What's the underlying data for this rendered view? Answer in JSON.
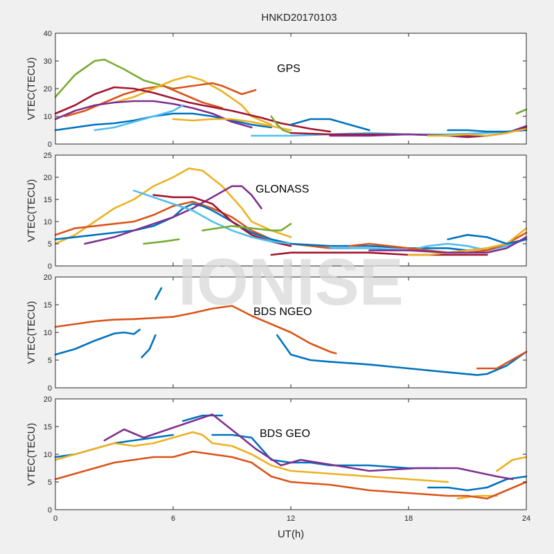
{
  "title": "HNKD20170103",
  "watermark": "IONISE",
  "xlabel": "UT(h)",
  "chart_data": [
    {
      "type": "line",
      "annotation": "GPS",
      "ylabel": "VTEC(TECU)",
      "xlim": [
        0,
        24
      ],
      "ylim": [
        0,
        40
      ],
      "xticks": [
        0,
        6,
        12,
        18,
        24
      ],
      "yticks": [
        0,
        10,
        20,
        30,
        40
      ],
      "grid": false,
      "series": [
        {
          "color": "#77ac30",
          "x": [
            0,
            1,
            2,
            2.5,
            3.5,
            4.5,
            5.5,
            6
          ],
          "y": [
            17,
            25,
            30,
            30.5,
            27,
            23,
            21,
            20
          ]
        },
        {
          "color": "#0072bd",
          "x": [
            0,
            1,
            2,
            3,
            4,
            5,
            6,
            7,
            8,
            9,
            10,
            11
          ],
          "y": [
            5,
            6,
            7,
            7.5,
            8.5,
            10,
            11,
            11,
            10,
            8.5,
            7,
            6
          ]
        },
        {
          "color": "#d95319",
          "x": [
            0.5,
            1.5,
            2.5,
            3.5,
            4.5,
            5.5,
            6.5,
            7.5,
            8.5
          ],
          "y": [
            10,
            12,
            15,
            18,
            20,
            21,
            18,
            15,
            13
          ]
        },
        {
          "color": "#edb120",
          "x": [
            3,
            4,
            5,
            6,
            6.8,
            7.5,
            8.5,
            9.5,
            10,
            11
          ],
          "y": [
            15,
            17,
            20,
            23,
            24.5,
            23,
            19,
            14,
            10,
            7
          ]
        },
        {
          "color": "#a2142f",
          "x": [
            0,
            1,
            2,
            3,
            4,
            5,
            6,
            6.8,
            7.5,
            9,
            10.5,
            11.5,
            13,
            14
          ],
          "y": [
            11,
            14,
            18,
            20.5,
            20,
            18.5,
            16.5,
            15,
            14,
            12,
            9.5,
            7.5,
            5.5,
            4.5
          ]
        },
        {
          "color": "#7e2f8e",
          "x": [
            0,
            1,
            2,
            3,
            4,
            5,
            6,
            7,
            8,
            9,
            10
          ],
          "y": [
            9,
            12,
            14,
            15,
            15.5,
            15.5,
            14.5,
            13,
            11,
            8,
            6
          ]
        },
        {
          "color": "#4dbeee",
          "x": [
            2,
            3,
            4,
            5,
            6,
            6.5
          ],
          "y": [
            5,
            6,
            8,
            10,
            12,
            14
          ]
        },
        {
          "color": "#d95319",
          "x": [
            6,
            7,
            8,
            8.5,
            9.5,
            10.2
          ],
          "y": [
            20,
            21,
            22,
            21,
            18,
            19.5
          ]
        },
        {
          "color": "#edb120",
          "x": [
            6,
            7,
            8,
            9,
            10,
            11,
            12
          ],
          "y": [
            9,
            8.5,
            9,
            9,
            8,
            6.5,
            5
          ]
        },
        {
          "color": "#77ac30",
          "x": [
            11,
            11.3,
            11.6,
            12
          ],
          "y": [
            10,
            7,
            5,
            4
          ]
        },
        {
          "color": "#0072bd",
          "x": [
            12,
            13,
            14,
            15,
            16
          ],
          "y": [
            7,
            9,
            9,
            7,
            5
          ]
        },
        {
          "color": "#4dbeee",
          "x": [
            10,
            12,
            14,
            16,
            18,
            20,
            22,
            24
          ],
          "y": [
            3,
            3,
            3.5,
            4,
            3.5,
            3.5,
            4,
            5
          ]
        },
        {
          "color": "#a2142f",
          "x": [
            12,
            14,
            16,
            18,
            20,
            21,
            22,
            23,
            24
          ],
          "y": [
            4,
            3.5,
            3.5,
            3.5,
            3,
            2.5,
            3,
            4,
            6
          ]
        },
        {
          "color": "#7e2f8e",
          "x": [
            14,
            16,
            18,
            20,
            22,
            23,
            24
          ],
          "y": [
            3,
            3,
            3.5,
            3,
            3,
            4,
            6.5
          ]
        },
        {
          "color": "#0072bd",
          "x": [
            20,
            21,
            22,
            23,
            24
          ],
          "y": [
            5,
            5,
            4.5,
            4.5,
            5
          ]
        },
        {
          "color": "#edb120",
          "x": [
            19,
            20,
            21,
            22,
            23,
            24
          ],
          "y": [
            3,
            3,
            3.5,
            3,
            4,
            5.5
          ]
        },
        {
          "color": "#77ac30",
          "x": [
            23.5,
            24
          ],
          "y": [
            11,
            12.5
          ]
        }
      ]
    },
    {
      "type": "line",
      "annotation": "GLONASS",
      "ylabel": "VTEC(TECU)",
      "xlim": [
        0,
        24
      ],
      "ylim": [
        0,
        25
      ],
      "xticks": [
        0,
        6,
        12,
        18,
        24
      ],
      "yticks": [
        0,
        5,
        10,
        15,
        20,
        25
      ],
      "grid": false,
      "series": [
        {
          "color": "#edb120",
          "x": [
            0,
            1,
            2,
            3,
            4,
            5,
            6,
            6.8,
            7.5,
            8.5,
            9.5,
            10,
            11,
            12
          ],
          "y": [
            5,
            7,
            10,
            13,
            15,
            18,
            20,
            22,
            21.5,
            18,
            13,
            10,
            8,
            6.5
          ]
        },
        {
          "color": "#d95319",
          "x": [
            0,
            1,
            2,
            3,
            4,
            5,
            6,
            7,
            8,
            9,
            10,
            11,
            12,
            13,
            14,
            15
          ],
          "y": [
            7,
            8.5,
            9,
            9.5,
            10,
            11.5,
            13.5,
            14.5,
            13,
            11,
            8,
            6,
            5,
            4.5,
            4,
            4
          ]
        },
        {
          "color": "#0072bd",
          "x": [
            0,
            1,
            2,
            3,
            4,
            5,
            6,
            6.5,
            7,
            7.5,
            8,
            9,
            10,
            11,
            12
          ],
          "y": [
            6,
            6.5,
            7,
            7.5,
            8,
            9,
            11,
            13,
            14,
            13.5,
            12.5,
            10,
            7.5,
            6,
            5
          ]
        },
        {
          "color": "#7e2f8e",
          "x": [
            1.5,
            3,
            4,
            5,
            6,
            7,
            8,
            9,
            9.5,
            10,
            10.5
          ],
          "y": [
            5,
            6.5,
            8,
            9.5,
            11,
            13,
            15.5,
            18,
            18,
            16,
            13
          ]
        },
        {
          "color": "#a2142f",
          "x": [
            5,
            6,
            7,
            8,
            8.5,
            9,
            10,
            11,
            12
          ],
          "y": [
            16,
            15.5,
            15.5,
            14,
            12,
            10,
            7,
            5.5,
            4.5
          ]
        },
        {
          "color": "#4dbeee",
          "x": [
            4,
            5,
            6,
            7,
            8,
            9,
            10,
            11,
            12
          ],
          "y": [
            17,
            15.5,
            14,
            12.5,
            10,
            8,
            6.5,
            5.5,
            5
          ]
        },
        {
          "color": "#77ac30",
          "x": [
            4.5,
            5.5,
            6.3
          ],
          "y": [
            5,
            5.5,
            6
          ]
        },
        {
          "color": "#77ac30",
          "x": [
            7.5,
            9,
            10,
            11,
            11.5,
            12
          ],
          "y": [
            8,
            9,
            8.5,
            8,
            8,
            9.5
          ]
        },
        {
          "color": "#0072bd",
          "x": [
            12,
            14,
            16,
            18,
            20,
            21,
            22,
            23,
            24
          ],
          "y": [
            5,
            4.5,
            4.5,
            4,
            4,
            3.5,
            4,
            5,
            6
          ]
        },
        {
          "color": "#4dbeee",
          "x": [
            14,
            16,
            18,
            19,
            20,
            21,
            22,
            23,
            24
          ],
          "y": [
            4,
            4,
            3.5,
            4.5,
            5,
            4.5,
            3.5,
            4.5,
            6
          ]
        },
        {
          "color": "#d95319",
          "x": [
            15,
            16,
            17,
            18,
            19,
            20,
            21,
            22,
            23,
            24
          ],
          "y": [
            4.5,
            5,
            4.5,
            4,
            3.5,
            3,
            3,
            3.5,
            5,
            7.5
          ]
        },
        {
          "color": "#a2142f",
          "x": [
            11,
            12,
            14,
            16,
            18,
            20,
            22
          ],
          "y": [
            2.5,
            3,
            3,
            3,
            2.5,
            2.5,
            2.5
          ]
        },
        {
          "color": "#edb120",
          "x": [
            18,
            19,
            20,
            21,
            22,
            23,
            24
          ],
          "y": [
            2.5,
            2.5,
            3,
            3.5,
            4,
            5,
            8.5
          ]
        },
        {
          "color": "#0072bd",
          "x": [
            20,
            21,
            22,
            23,
            24
          ],
          "y": [
            6,
            7,
            6.5,
            5,
            6
          ]
        },
        {
          "color": "#7e2f8e",
          "x": [
            16,
            18,
            20,
            22,
            23,
            24
          ],
          "y": [
            3.5,
            3.5,
            3,
            3,
            4,
            6.5
          ]
        }
      ]
    },
    {
      "type": "line",
      "annotation": "BDS NGEO",
      "ylabel": "VTEC(TECU)",
      "xlim": [
        0,
        24
      ],
      "ylim": [
        0,
        20
      ],
      "xticks": [
        0,
        6,
        12,
        18,
        24
      ],
      "yticks": [
        0,
        5,
        10,
        15,
        20
      ],
      "grid": false,
      "series": [
        {
          "color": "#d95319",
          "x": [
            0,
            1,
            2,
            3,
            4,
            5,
            6,
            7,
            8,
            9,
            10,
            11,
            12,
            13,
            14,
            14.3
          ],
          "y": [
            11,
            11.5,
            12,
            12.3,
            12.4,
            12.6,
            12.8,
            13.5,
            14.3,
            14.8,
            13,
            11.5,
            10,
            8,
            6.5,
            6.2
          ]
        },
        {
          "color": "#0072bd",
          "x": [
            0,
            1,
            2,
            3,
            3.5,
            4,
            4.3
          ],
          "y": [
            6,
            7,
            8.5,
            9.8,
            10,
            9.7,
            10.5
          ]
        },
        {
          "color": "#0072bd",
          "x": [
            4.4,
            4.8,
            5.1
          ],
          "y": [
            5.5,
            7,
            9.5
          ]
        },
        {
          "color": "#0072bd",
          "x": [
            5.1,
            5.4
          ],
          "y": [
            16,
            18
          ]
        },
        {
          "color": "#0072bd",
          "x": [
            11.3,
            11.6,
            12,
            13,
            14,
            16,
            18,
            20,
            21.5,
            22,
            23,
            24
          ],
          "y": [
            9.5,
            8,
            6,
            5,
            4.7,
            4.2,
            3.5,
            2.8,
            2.3,
            2.5,
            4,
            6.5
          ]
        },
        {
          "color": "#d95319",
          "x": [
            21.5,
            22.5,
            23,
            24
          ],
          "y": [
            3.5,
            3.5,
            4.5,
            6.5
          ]
        }
      ]
    },
    {
      "type": "line",
      "annotation": "BDS GEO",
      "ylabel": "VTEC(TECU)",
      "xlim": [
        0,
        24
      ],
      "ylim": [
        0,
        20
      ],
      "xticks": [
        0,
        6,
        12,
        18,
        24
      ],
      "yticks": [
        0,
        5,
        10,
        15,
        20
      ],
      "grid": false,
      "series": [
        {
          "color": "#0072bd",
          "x": [
            0,
            1,
            2,
            3,
            4,
            5,
            6
          ],
          "y": [
            9.5,
            10,
            11,
            12,
            12.5,
            13,
            13.5
          ]
        },
        {
          "color": "#0072bd",
          "x": [
            6.5,
            7.5,
            8.5
          ],
          "y": [
            16,
            17,
            17
          ]
        },
        {
          "color": "#0072bd",
          "x": [
            8,
            9,
            10,
            10.5,
            11,
            12,
            13,
            14,
            16,
            18,
            19.5
          ],
          "y": [
            13.5,
            13.5,
            13,
            11,
            9,
            8.5,
            8.5,
            8,
            8,
            7.5,
            7.5
          ]
        },
        {
          "color": "#0072bd",
          "x": [
            19,
            20,
            21,
            22,
            23,
            24
          ],
          "y": [
            4,
            4,
            3.5,
            4,
            5.5,
            6
          ]
        },
        {
          "color": "#edb120",
          "x": [
            0,
            1,
            2,
            3,
            4,
            5,
            6,
            7,
            7.5,
            8,
            9,
            10,
            11,
            12,
            14,
            16,
            18,
            20
          ],
          "y": [
            9,
            10,
            11,
            12,
            11.5,
            12,
            13,
            14,
            13.5,
            12,
            11.5,
            10,
            8,
            7,
            6.5,
            6,
            5.5,
            5
          ]
        },
        {
          "color": "#edb120",
          "x": [
            20.5,
            21.5,
            22.5
          ],
          "y": [
            2,
            2.5,
            2.5
          ]
        },
        {
          "color": "#edb120",
          "x": [
            22.5,
            23.3,
            24
          ],
          "y": [
            7,
            9,
            9.5
          ]
        },
        {
          "color": "#d95319",
          "x": [
            0,
            1,
            2,
            3,
            4,
            5,
            6,
            7,
            8,
            9,
            10,
            11,
            12,
            14,
            16,
            18,
            20,
            21,
            22,
            23,
            24
          ],
          "y": [
            5.5,
            6.5,
            7.5,
            8.5,
            9,
            9.5,
            9.5,
            10.5,
            10,
            9.5,
            8.5,
            6,
            5,
            4.5,
            3.5,
            3,
            2.5,
            2.5,
            2,
            3.5,
            5
          ]
        },
        {
          "color": "#7e2f8e",
          "x": [
            2.5,
            3.5,
            4.5,
            8,
            9.5,
            10.2,
            11.5,
            12.5,
            16,
            18.5,
            20.5,
            22.5,
            23.3
          ],
          "y": [
            12.5,
            14.5,
            13,
            17.2,
            13,
            11,
            8,
            9,
            7,
            7.5,
            7.5,
            6,
            5.5
          ]
        }
      ]
    }
  ]
}
